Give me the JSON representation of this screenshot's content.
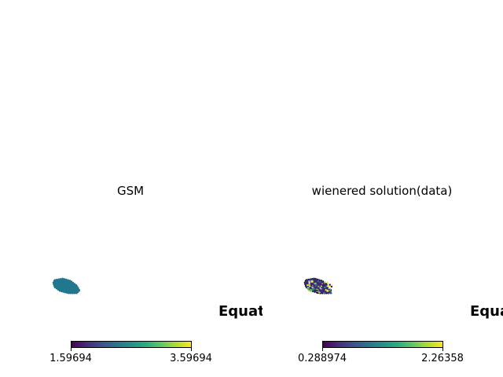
{
  "chart_data": [
    {
      "type": "heatmap",
      "title": "GSM",
      "coordinate_label": "Equat",
      "colormap": "viridis",
      "colorbar": {
        "min": 1.59694,
        "max": 3.59694,
        "min_label": "1.59694",
        "max_label": "3.59694",
        "orientation": "horizontal"
      },
      "patch": {
        "dominant_color": "#21788e",
        "value": 2.5
      }
    },
    {
      "type": "heatmap",
      "title": "wienered solution(data)",
      "coordinate_label": "Equa",
      "colormap": "viridis",
      "colorbar": {
        "min": 0.288974,
        "max": 2.26358,
        "min_label": "0.288974",
        "max_label": "2.26358",
        "orientation": "horizontal"
      },
      "patch": {
        "dominant_color": "#3b2a78",
        "value": "mixed"
      }
    }
  ]
}
